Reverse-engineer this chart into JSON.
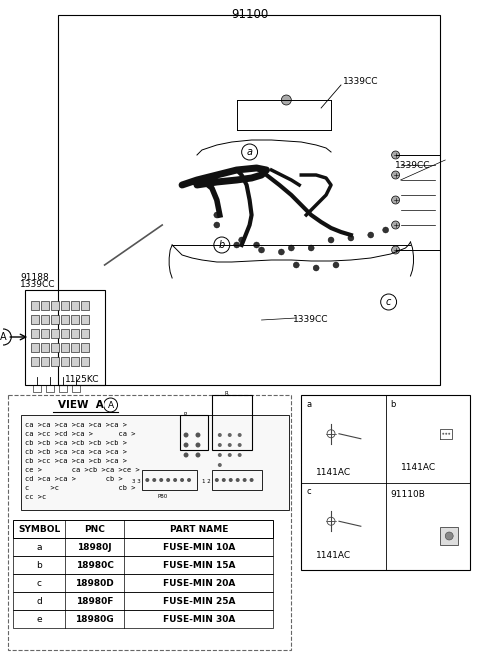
{
  "title": "91100",
  "bg_color": "#ffffff",
  "border_color": "#000000",
  "labels": {
    "main_part": "91100",
    "fuse_box_label": "91188",
    "fuse_box_pnc": "1339CC",
    "bottom_fuse": "1125KC",
    "label_a_top": "1339CC",
    "label_b_top": "1339CC",
    "label_c_bottom": "1339CC",
    "label_1141ac_a": "1141AC",
    "label_1141ac_b": "1141AC",
    "label_91110b": "91110B",
    "label_1141ac_c": "1141AC"
  },
  "table_data": {
    "headers": [
      "SYMBOL",
      "PNC",
      "PART NAME"
    ],
    "rows": [
      [
        "a",
        "18980J",
        "FUSE-MIN 10A"
      ],
      [
        "b",
        "18980C",
        "FUSE-MIN 15A"
      ],
      [
        "c",
        "18980D",
        "FUSE-MIN 20A"
      ],
      [
        "d",
        "18980F",
        "FUSE-MIN 25A"
      ],
      [
        "e",
        "18980G",
        "FUSE-MIN 30A"
      ]
    ]
  },
  "view_a_label": "VIEW  A",
  "line_color": "#000000",
  "text_color": "#000000",
  "gray_color": "#888888",
  "light_gray": "#cccccc",
  "dashed_color": "#555555"
}
